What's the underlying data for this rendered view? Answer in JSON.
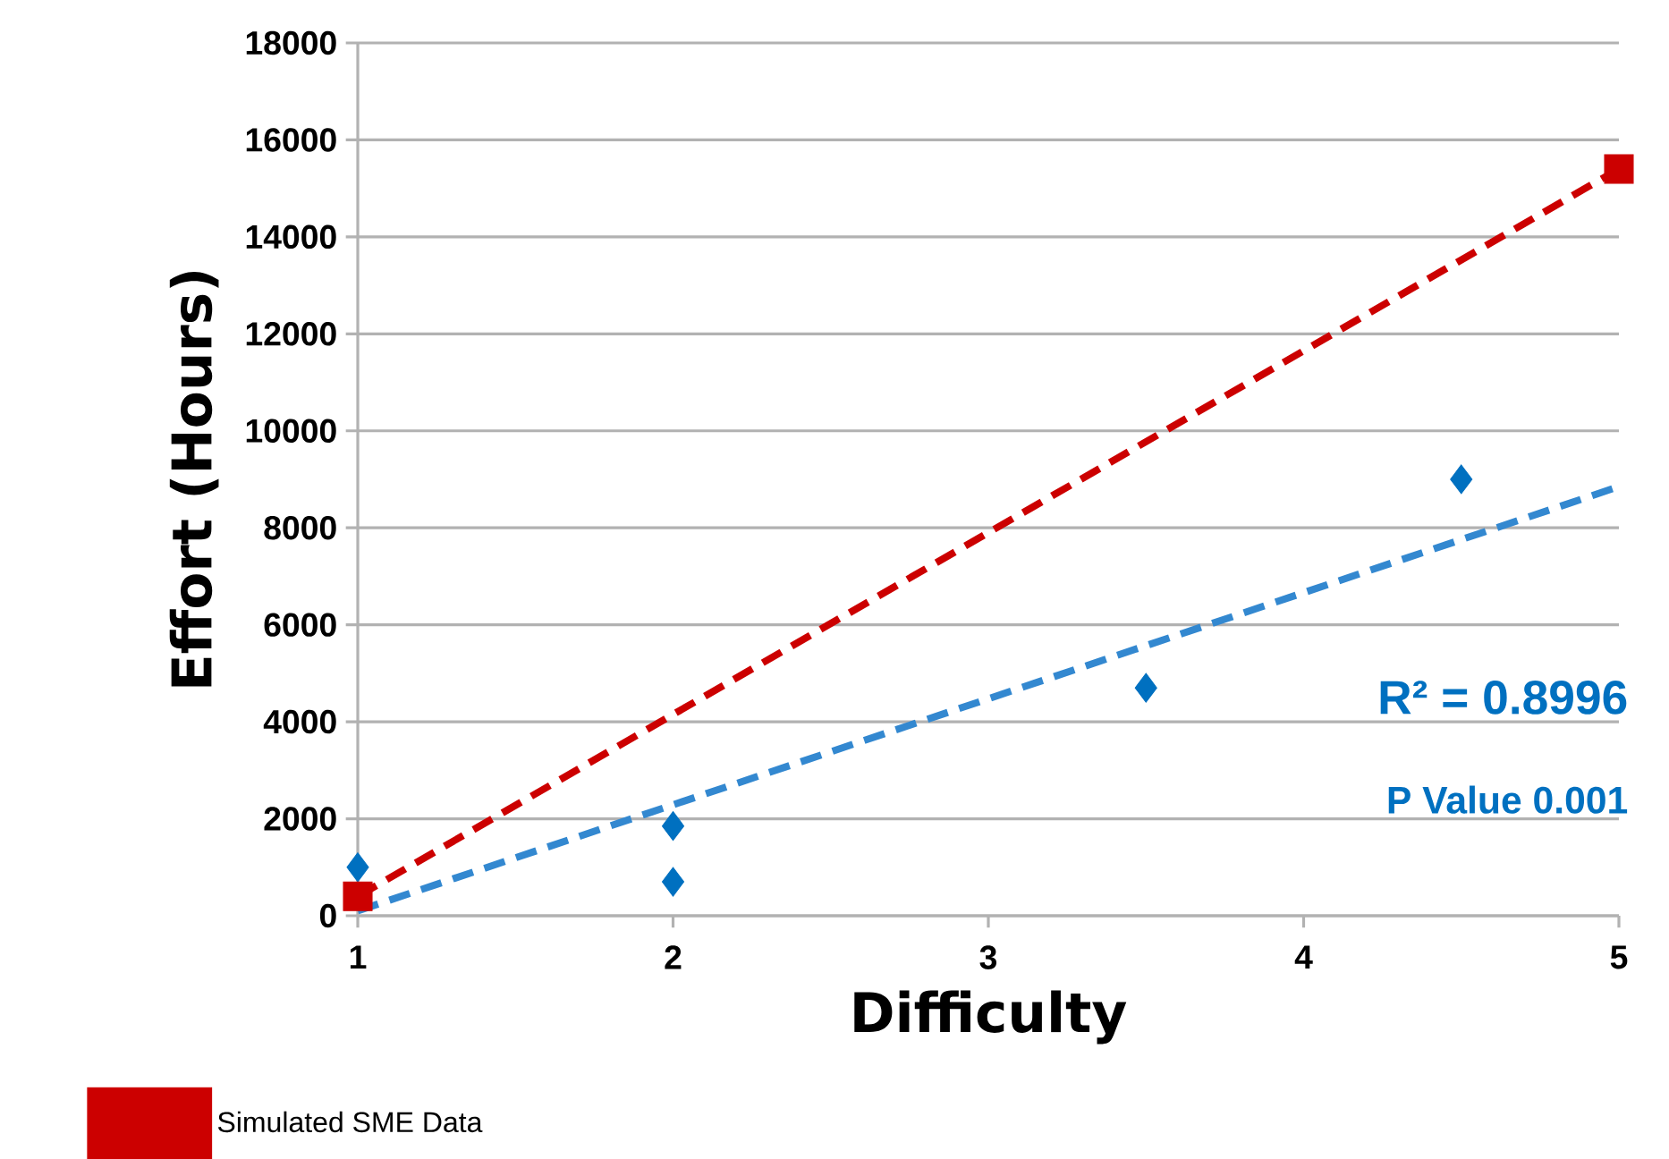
{
  "chart_data": {
    "type": "scatter",
    "xlabel": "Difficulty",
    "ylabel": "Effort (Hours)",
    "xlim": [
      1,
      5
    ],
    "ylim": [
      0,
      18000
    ],
    "xticks": [
      1,
      2,
      3,
      4,
      5
    ],
    "yticks": [
      0,
      2000,
      4000,
      6000,
      8000,
      10000,
      12000,
      14000,
      16000,
      18000
    ],
    "grid": "y",
    "legend": "bottom left",
    "series": [
      {
        "color": "#0070c0",
        "marker": "diamond",
        "x": [
          1,
          2,
          2,
          3.5,
          4.5
        ],
        "values": [
          1000,
          1850,
          700,
          4700,
          9000
        ]
      },
      {
        "name": "Simulated SME Data",
        "color": "#cc0000",
        "marker": "square",
        "x": [
          1,
          5
        ],
        "values": [
          400,
          15400
        ]
      },
      {
        "type": "line",
        "color": "#cc0000",
        "line_style": "dashed",
        "x": [
          1,
          5
        ],
        "values": [
          400,
          15400
        ]
      },
      {
        "type": "line",
        "color": "#3388d0",
        "line_style": "dashed",
        "x": [
          1,
          5
        ],
        "values": [
          100,
          8850
        ]
      }
    ],
    "annotations": [
      "R² = 0.8996",
      "P Value 0.001"
    ]
  }
}
